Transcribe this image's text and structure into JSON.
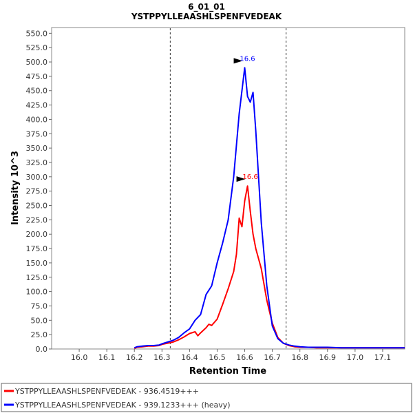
{
  "chart_data": {
    "type": "line",
    "title": "6_01_01",
    "subtitle": "YSTPPYLLEAASHLSPENFVEDEAK",
    "xlabel": "Retention Time",
    "ylabel": "Intensity 10^3",
    "xlim": [
      15.9,
      17.18
    ],
    "ylim": [
      0,
      560
    ],
    "xticks": [
      16.0,
      16.1,
      16.2,
      16.3,
      16.4,
      16.5,
      16.6,
      16.7,
      16.8,
      16.9,
      17.0,
      17.1
    ],
    "xtick_labels": [
      "16.0",
      "16.1",
      "16.2",
      "16.3",
      "16.4",
      "16.5",
      "16.6",
      "16.7",
      "16.8",
      "16.9",
      "17.0",
      "17.1"
    ],
    "yticks": [
      0,
      25,
      50,
      75,
      100,
      125,
      150,
      175,
      200,
      225,
      250,
      275,
      300,
      325,
      350,
      375,
      400,
      425,
      450,
      475,
      500,
      525,
      550
    ],
    "ytick_labels": [
      "0.0",
      "25.0",
      "50.0",
      "75.0",
      "100.0",
      "125.0",
      "150.0",
      "175.0",
      "200.0",
      "225.0",
      "250.0",
      "275.0",
      "300.0",
      "325.0",
      "350.0",
      "375.0",
      "400.0",
      "425.0",
      "450.0",
      "475.0",
      "500.0",
      "525.0",
      "550.0"
    ],
    "vlines": [
      16.33,
      16.75
    ],
    "legend_placement": "bottom",
    "grid": false,
    "series": [
      {
        "name": "YSTPPYLLEAASHLSPENFVEDEAK - 936.4519+++",
        "color": "#ff0000",
        "peak_label": "16.6",
        "peak_x": 16.61,
        "peak_y": 284,
        "x": [
          16.2,
          16.21,
          16.23,
          16.25,
          16.27,
          16.29,
          16.3,
          16.32,
          16.34,
          16.36,
          16.38,
          16.4,
          16.42,
          16.43,
          16.44,
          16.46,
          16.47,
          16.48,
          16.5,
          16.52,
          16.54,
          16.56,
          16.57,
          16.58,
          16.59,
          16.6,
          16.61,
          16.62,
          16.63,
          16.64,
          16.66,
          16.68,
          16.7,
          16.72,
          16.74,
          16.76,
          16.78,
          16.8,
          16.83,
          16.86,
          16.9,
          16.95,
          17.0,
          17.05,
          17.1,
          17.15,
          17.18
        ],
        "values": [
          1,
          3,
          4,
          5,
          5,
          6,
          8,
          10,
          12,
          16,
          21,
          27,
          30,
          23,
          28,
          37,
          43,
          41,
          52,
          78,
          105,
          135,
          165,
          228,
          213,
          258,
          284,
          240,
          200,
          175,
          140,
          85,
          45,
          20,
          10,
          6,
          4,
          3,
          3,
          2,
          2,
          2,
          2,
          2,
          2,
          2,
          2
        ]
      },
      {
        "name": "YSTPPYLLEAASHLSPENFVEDEAK - 939.1233+++ (heavy)",
        "color": "#0000ff",
        "peak_label": "16.6",
        "peak_x": 16.6,
        "peak_y": 490,
        "x": [
          16.2,
          16.21,
          16.23,
          16.25,
          16.27,
          16.29,
          16.3,
          16.32,
          16.34,
          16.36,
          16.38,
          16.4,
          16.42,
          16.44,
          16.46,
          16.48,
          16.5,
          16.52,
          16.54,
          16.56,
          16.58,
          16.59,
          16.6,
          16.61,
          16.62,
          16.63,
          16.64,
          16.66,
          16.68,
          16.7,
          16.72,
          16.74,
          16.76,
          16.78,
          16.8,
          16.83,
          16.86,
          16.9,
          16.95,
          17.0,
          17.05,
          17.1,
          17.15,
          17.18
        ],
        "values": [
          2,
          4,
          5,
          6,
          6,
          7,
          9,
          12,
          15,
          20,
          28,
          35,
          50,
          60,
          95,
          110,
          150,
          185,
          225,
          300,
          410,
          450,
          490,
          440,
          430,
          447,
          380,
          220,
          110,
          40,
          18,
          10,
          7,
          5,
          4,
          3,
          3,
          3,
          2,
          2,
          2,
          2,
          2,
          2
        ]
      }
    ]
  }
}
